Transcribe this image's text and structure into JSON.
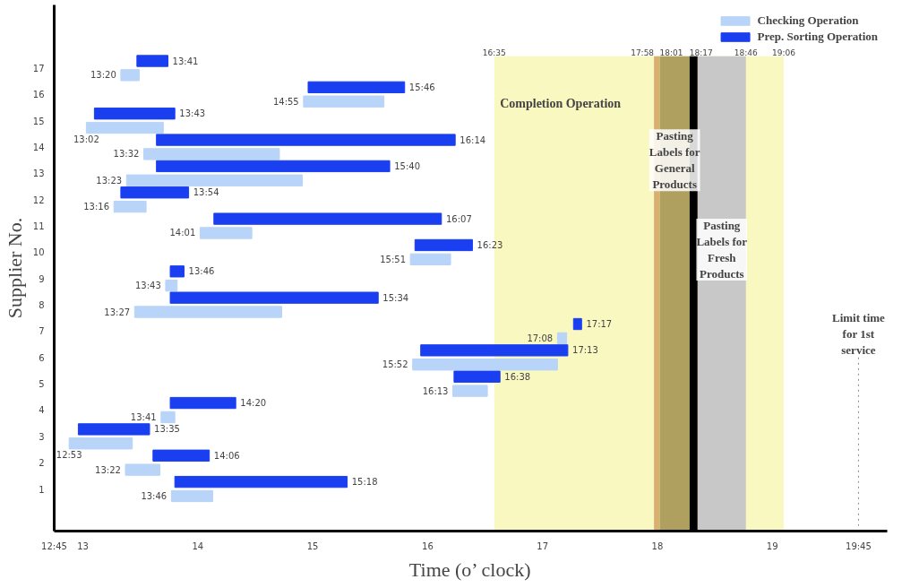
{
  "chart_data": {
    "type": "bar",
    "orientation": "horizontal",
    "xlabel": "Time (o’ clock)",
    "ylabel": "Supplier No.",
    "categories": [
      "17",
      "16",
      "15",
      "14",
      "13",
      "12",
      "11",
      "10",
      "9",
      "8",
      "7",
      "6",
      "5",
      "4",
      "3",
      "2",
      "1"
    ],
    "series": [
      {
        "name": "Checking Operation",
        "color": "#b8d4f8",
        "base": [
          13.33,
          14.92,
          13.03,
          13.53,
          13.38,
          13.27,
          14.02,
          15.85,
          13.72,
          13.45,
          17.13,
          15.87,
          16.22,
          13.68,
          12.88,
          13.37,
          13.77
        ],
        "values": [
          0.16,
          0.7,
          0.67,
          1.18,
          1.53,
          0.28,
          0.45,
          0.35,
          0.1,
          1.28,
          0.08,
          1.26,
          0.3,
          0.12,
          0.55,
          0.3,
          0.36
        ]
      },
      {
        "name": "Prep. Sorting Operation",
        "color": "#1a3ff0",
        "base": [
          13.47,
          14.96,
          13.1,
          13.64,
          13.64,
          13.33,
          14.14,
          15.89,
          13.76,
          13.76,
          17.27,
          15.94,
          16.23,
          13.76,
          12.96,
          13.61,
          13.8
        ],
        "values": [
          0.27,
          0.84,
          0.7,
          2.6,
          2.03,
          0.59,
          1.98,
          0.5,
          0.12,
          1.81,
          0.07,
          1.28,
          0.4,
          0.57,
          0.62,
          0.49,
          1.5
        ]
      }
    ],
    "xlim": [
      12.75,
      20.0
    ],
    "xticks": [
      {
        "value": 12.75,
        "label": "12:45"
      },
      13,
      14,
      15,
      16,
      17,
      18,
      19,
      {
        "value": 19.75,
        "label": "19:45"
      }
    ],
    "bands": [
      {
        "axis": "x",
        "from": 16.58,
        "to": 19.1,
        "label": "Completion Operation",
        "color": "#f8f8c0"
      },
      {
        "axis": "x",
        "from": 17.97,
        "to": 18.02,
        "color": "#d8b070"
      },
      {
        "axis": "x",
        "from": 18.02,
        "to": 18.28,
        "label": "Pasting Labels for General Products",
        "color": "#b0a060"
      },
      {
        "axis": "x",
        "from": 18.28,
        "to": 18.35,
        "color": "#000000"
      },
      {
        "axis": "x",
        "from": 18.35,
        "to": 18.77,
        "label": "Pasting Labels for Fresh Products",
        "color": "#c8c8c8"
      }
    ],
    "ref_lines": [
      {
        "axis": "x",
        "value": 19.75,
        "label": "Limit time for 1st service",
        "color": "#888888",
        "line_style": "dotted"
      }
    ],
    "annotations": [
      {
        "text": "16:35",
        "x": 16.58
      },
      {
        "text": "17:58",
        "x": 17.97
      },
      {
        "text": "18:01",
        "x": 18.02
      },
      {
        "text": "18:17",
        "x": 18.28
      },
      {
        "text": "18:46",
        "x": 18.77
      },
      {
        "text": "19:06",
        "x": 19.1
      },
      {
        "text": "13:20",
        "x": 13.33,
        "y": "17"
      },
      {
        "text": "13:41",
        "x": 13.74,
        "y": "17"
      },
      {
        "text": "14:55",
        "x": 14.92,
        "y": "16"
      },
      {
        "text": "15:46",
        "x": 15.8,
        "y": "16"
      },
      {
        "text": "13:02",
        "x": 13.03,
        "y": "15"
      },
      {
        "text": "13:43",
        "x": 13.8,
        "y": "15"
      },
      {
        "text": "13:32",
        "x": 13.53,
        "y": "14"
      },
      {
        "text": "16:14",
        "x": 16.24,
        "y": "14"
      },
      {
        "text": "13:23",
        "x": 13.38,
        "y": "13"
      },
      {
        "text": "15:40",
        "x": 15.67,
        "y": "13"
      },
      {
        "text": "13:16",
        "x": 13.27,
        "y": "12"
      },
      {
        "text": "13:54",
        "x": 13.92,
        "y": "12"
      },
      {
        "text": "14:01",
        "x": 14.02,
        "y": "11"
      },
      {
        "text": "16:07",
        "x": 16.12,
        "y": "11"
      },
      {
        "text": "15:51",
        "x": 15.85,
        "y": "10"
      },
      {
        "text": "16:23",
        "x": 16.39,
        "y": "10"
      },
      {
        "text": "13:43",
        "x": 13.72,
        "y": "9"
      },
      {
        "text": "13:46",
        "x": 13.88,
        "y": "9"
      },
      {
        "text": "13:27",
        "x": 13.45,
        "y": "8"
      },
      {
        "text": "15:34",
        "x": 15.57,
        "y": "8"
      },
      {
        "text": "17:08",
        "x": 17.13,
        "y": "7"
      },
      {
        "text": "17:17",
        "x": 17.34,
        "y": "7"
      },
      {
        "text": "15:52",
        "x": 15.87,
        "y": "6"
      },
      {
        "text": "17:13",
        "x": 17.22,
        "y": "6"
      },
      {
        "text": "16:13",
        "x": 16.22,
        "y": "5"
      },
      {
        "text": "16:38",
        "x": 16.63,
        "y": "5"
      },
      {
        "text": "13:41",
        "x": 13.68,
        "y": "4"
      },
      {
        "text": "14:20",
        "x": 14.33,
        "y": "4"
      },
      {
        "text": "12:53",
        "x": 12.88,
        "y": "3"
      },
      {
        "text": "13:35",
        "x": 13.58,
        "y": "3"
      },
      {
        "text": "13:22",
        "x": 13.37,
        "y": "2"
      },
      {
        "text": "14:06",
        "x": 14.1,
        "y": "2"
      },
      {
        "text": "13:46",
        "x": 13.77,
        "y": "1"
      },
      {
        "text": "15:18",
        "x": 15.3,
        "y": "1"
      }
    ],
    "legend": "top right",
    "grid": false
  }
}
